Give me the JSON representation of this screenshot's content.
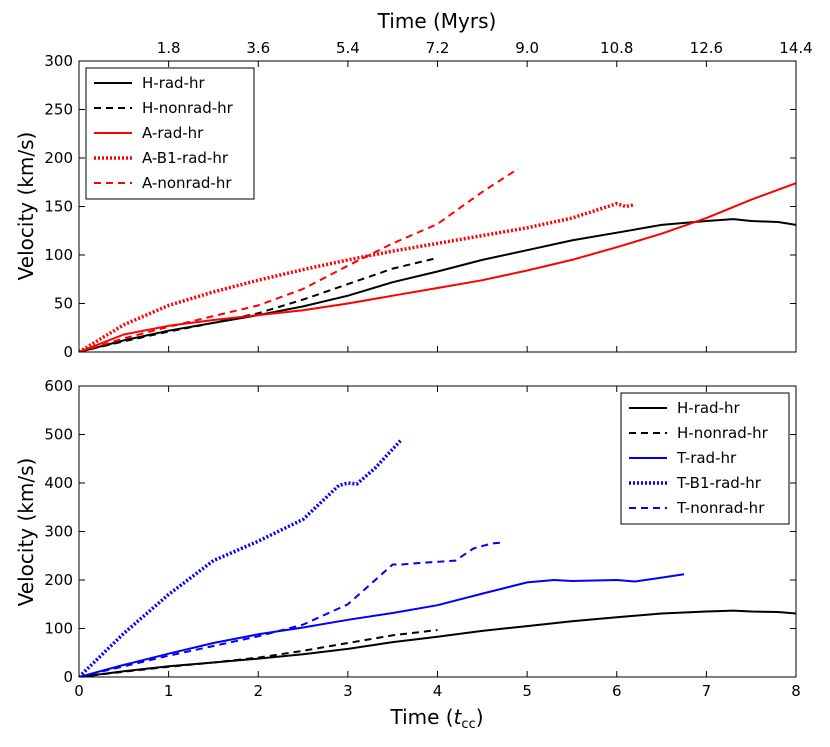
{
  "chart_data": [
    {
      "type": "line",
      "panel": "top",
      "title": "",
      "xlabel": "",
      "ylabel": "Velocity (km/s)",
      "top_axis": {
        "label": "Time (Myrs)",
        "ticks": [
          "1.8",
          "3.6",
          "5.4",
          "7.2",
          "9.0",
          "10.8",
          "12.6",
          "14.4"
        ],
        "tick_positions_tcc": [
          1,
          2,
          3,
          4,
          5,
          6,
          7,
          8
        ]
      },
      "xlim": [
        0,
        8
      ],
      "ylim": [
        0,
        300
      ],
      "yticks": [
        "0",
        "50",
        "100",
        "150",
        "200",
        "250",
        "300"
      ],
      "legend_loc": "upper left",
      "series": [
        {
          "name": "H-rad-hr",
          "color": "#000000",
          "style": "solid",
          "x": [
            0,
            0.5,
            1,
            1.5,
            2,
            2.5,
            3,
            3.5,
            4,
            4.5,
            5,
            5.5,
            6,
            6.5,
            7,
            7.3,
            7.5,
            7.8,
            8
          ],
          "y": [
            0,
            12,
            22,
            30,
            38,
            47,
            58,
            72,
            83,
            95,
            105,
            115,
            123,
            131,
            135,
            137,
            135,
            134,
            131
          ]
        },
        {
          "name": "H-nonrad-hr",
          "color": "#000000",
          "style": "dashed",
          "x": [
            0,
            0.5,
            1,
            1.5,
            2,
            2.5,
            3,
            3.5,
            4
          ],
          "y": [
            0,
            11,
            21,
            30,
            40,
            54,
            70,
            86,
            97
          ]
        },
        {
          "name": "A-rad-hr",
          "color": "#ff0000",
          "style": "solid",
          "x": [
            0,
            0.5,
            1,
            1.5,
            2,
            2.5,
            3,
            3.5,
            4,
            4.5,
            5,
            5.5,
            6,
            6.5,
            7,
            7.5,
            8
          ],
          "y": [
            0,
            18,
            27,
            33,
            38,
            43,
            50,
            58,
            66,
            74,
            84,
            95,
            108,
            122,
            138,
            157,
            174
          ]
        },
        {
          "name": "A-B1-rad-hr",
          "color": "#ff0000",
          "style": "dotted",
          "x": [
            0,
            0.5,
            1,
            1.5,
            2,
            2.5,
            3,
            3.5,
            4,
            4.5,
            5,
            5.5,
            6,
            6.1,
            6.2
          ],
          "y": [
            0,
            28,
            48,
            62,
            74,
            85,
            95,
            104,
            112,
            120,
            128,
            138,
            153,
            150,
            152
          ]
        },
        {
          "name": "A-nonrad-hr",
          "color": "#ff0000",
          "style": "dashed",
          "x": [
            0,
            0.5,
            1,
            1.5,
            2,
            2.5,
            3,
            3.5,
            4,
            4.5,
            4.9
          ],
          "y": [
            0,
            14,
            26,
            37,
            48,
            65,
            89,
            112,
            132,
            165,
            189
          ]
        }
      ]
    },
    {
      "type": "line",
      "panel": "bottom",
      "title": "",
      "xlabel": "Time (",
      "xlabel_math": "t",
      "xlabel_sub": "cc",
      "xlabel_close": ")",
      "ylabel": "Velocity (km/s)",
      "xlim": [
        0,
        8
      ],
      "ylim": [
        0,
        600
      ],
      "xticks": [
        "0",
        "1",
        "2",
        "3",
        "4",
        "5",
        "6",
        "7",
        "8"
      ],
      "yticks": [
        "0",
        "100",
        "200",
        "300",
        "400",
        "500",
        "600"
      ],
      "legend_loc": "upper right",
      "series": [
        {
          "name": "H-rad-hr",
          "color": "#000000",
          "style": "solid",
          "x": [
            0,
            0.5,
            1,
            1.5,
            2,
            2.5,
            3,
            3.5,
            4,
            4.5,
            5,
            5.5,
            6,
            6.5,
            7,
            7.3,
            7.5,
            7.8,
            8
          ],
          "y": [
            0,
            12,
            22,
            30,
            38,
            47,
            58,
            72,
            83,
            95,
            105,
            115,
            123,
            131,
            135,
            137,
            135,
            134,
            131
          ]
        },
        {
          "name": "H-nonrad-hr",
          "color": "#000000",
          "style": "dashed",
          "x": [
            0,
            0.5,
            1,
            1.5,
            2,
            2.5,
            3,
            3.5,
            4
          ],
          "y": [
            0,
            11,
            21,
            30,
            40,
            54,
            70,
            86,
            97
          ]
        },
        {
          "name": "T-rad-hr",
          "color": "#0000ff",
          "style": "solid",
          "x": [
            0,
            0.5,
            1,
            1.5,
            2,
            2.5,
            3,
            3.5,
            4,
            4.5,
            5,
            5.3,
            5.5,
            6,
            6.2,
            6.5,
            6.75
          ],
          "y": [
            0,
            25,
            48,
            70,
            88,
            102,
            118,
            132,
            148,
            172,
            195,
            200,
            198,
            200,
            197,
            205,
            212
          ]
        },
        {
          "name": "T-B1-rad-hr",
          "color": "#0000ff",
          "style": "dotted",
          "x": [
            0,
            0.5,
            1,
            1.5,
            2,
            2.5,
            2.9,
            3.0,
            3.1,
            3.3,
            3.6
          ],
          "y": [
            0,
            90,
            170,
            240,
            280,
            325,
            395,
            400,
            398,
            430,
            490
          ]
        },
        {
          "name": "T-nonrad-hr",
          "color": "#0000ff",
          "style": "dashed",
          "x": [
            0,
            0.5,
            1,
            1.5,
            2,
            2.5,
            3,
            3.5,
            3.6,
            3.8,
            4.2,
            4.4,
            4.6,
            4.75
          ],
          "y": [
            0,
            22,
            44,
            64,
            84,
            108,
            150,
            232,
            232,
            235,
            240,
            265,
            275,
            278
          ]
        }
      ]
    }
  ]
}
